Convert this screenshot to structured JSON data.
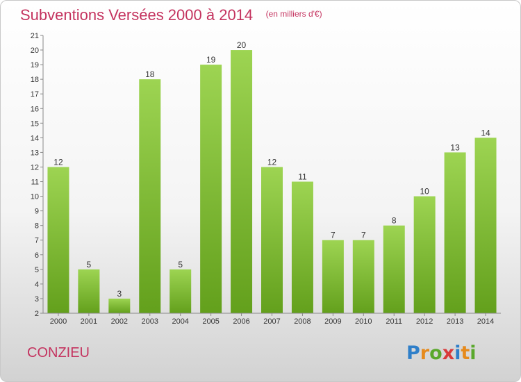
{
  "header": {
    "title": "Subventions Versées 2000 à 2014",
    "subtitle": "(en milliers d'€)"
  },
  "footer": {
    "location": "CONZIEU",
    "brand": "Proxiti"
  },
  "colors": {
    "title": "#c4335f",
    "bar_top": "#9dd452",
    "bar_bottom": "#63a01c"
  },
  "chart_data": {
    "type": "bar",
    "title": "Subventions Versées 2000 à 2014",
    "subtitle": "(en milliers d'€)",
    "categories": [
      "2000",
      "2001",
      "2002",
      "2003",
      "2004",
      "2005",
      "2006",
      "2007",
      "2008",
      "2009",
      "2010",
      "2011",
      "2012",
      "2013",
      "2014"
    ],
    "values": [
      12,
      5,
      3,
      18,
      5,
      19,
      20,
      12,
      11,
      7,
      7,
      8,
      10,
      13,
      14
    ],
    "xlabel": "",
    "ylabel": "",
    "ylim": [
      2,
      21
    ],
    "yticks": [
      2,
      3,
      4,
      5,
      6,
      7,
      8,
      9,
      10,
      11,
      12,
      13,
      14,
      15,
      16,
      17,
      18,
      19,
      20,
      21
    ],
    "grid": false,
    "data_labels": true
  }
}
